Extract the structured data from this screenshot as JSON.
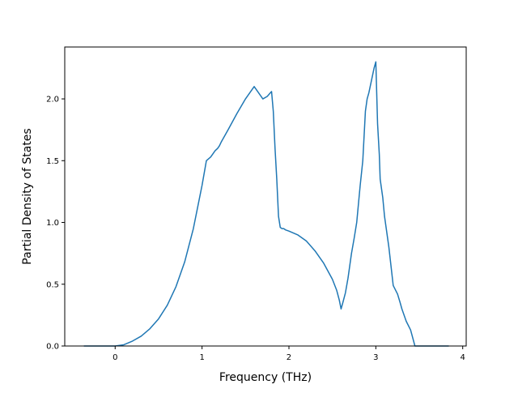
{
  "chart_data": {
    "type": "line",
    "title": "",
    "xlabel": "Frequency (THz)",
    "ylabel": "Partial Density of States",
    "xlim": [
      -0.58,
      4.04
    ],
    "ylim": [
      0.0,
      2.42
    ],
    "xticks": [
      0,
      1,
      2,
      3,
      4
    ],
    "xtick_labels": [
      "0",
      "1",
      "2",
      "3",
      "4"
    ],
    "yticks": [
      0.0,
      0.5,
      1.0,
      1.5,
      2.0
    ],
    "ytick_labels": [
      "0.0",
      "0.5",
      "1.0",
      "1.5",
      "2.0"
    ],
    "grid": false,
    "legend": "none",
    "line_color": "#1f77b4",
    "series": [
      {
        "x": [
          -0.36,
          -0.2,
          0.0,
          0.1,
          0.2,
          0.3,
          0.4,
          0.5,
          0.6,
          0.7,
          0.8,
          0.9,
          1.0,
          1.05,
          1.1,
          1.15,
          1.18,
          1.2,
          1.22,
          1.3,
          1.4,
          1.5,
          1.6,
          1.7,
          1.75,
          1.8,
          1.82,
          1.84,
          1.86,
          1.88,
          1.9,
          1.92,
          1.94,
          1.96,
          2.0,
          2.1,
          2.2,
          2.3,
          2.4,
          2.5,
          2.55,
          2.58,
          2.6,
          2.62,
          2.65,
          2.68,
          2.7,
          2.72,
          2.75,
          2.78,
          2.8,
          2.82,
          2.85,
          2.88,
          2.9,
          2.92,
          2.95,
          2.98,
          3.0,
          3.02,
          3.04,
          3.05,
          3.08,
          3.1,
          3.15,
          3.2,
          3.25,
          3.28,
          3.3,
          3.35,
          3.4,
          3.45,
          3.48,
          3.5,
          3.55,
          3.6,
          3.7,
          3.84
        ],
        "y": [
          0.0,
          0.0,
          0.0,
          0.01,
          0.04,
          0.08,
          0.14,
          0.22,
          0.33,
          0.48,
          0.68,
          0.95,
          1.3,
          1.5,
          1.53,
          1.58,
          1.6,
          1.62,
          1.65,
          1.75,
          1.88,
          2.0,
          2.1,
          2.0,
          2.02,
          2.06,
          1.9,
          1.6,
          1.35,
          1.05,
          0.96,
          0.95,
          0.95,
          0.94,
          0.93,
          0.9,
          0.85,
          0.77,
          0.67,
          0.54,
          0.45,
          0.37,
          0.3,
          0.35,
          0.43,
          0.55,
          0.65,
          0.75,
          0.87,
          1.0,
          1.15,
          1.3,
          1.5,
          1.9,
          2.0,
          2.05,
          2.15,
          2.25,
          2.3,
          1.8,
          1.55,
          1.35,
          1.2,
          1.05,
          0.8,
          0.49,
          0.42,
          0.35,
          0.3,
          0.2,
          0.13,
          0.0,
          0.0,
          0.0,
          0.0,
          0.0,
          0.0,
          0.0
        ]
      }
    ]
  }
}
